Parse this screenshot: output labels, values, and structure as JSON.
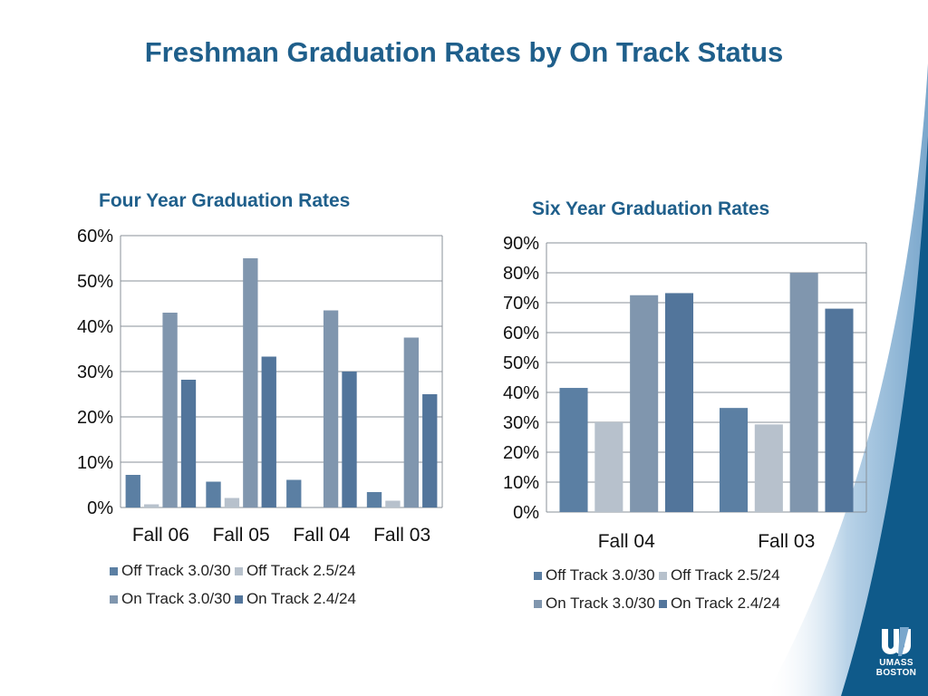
{
  "slide": {
    "title": "Freshman Graduation Rates by On Track Status"
  },
  "colors": {
    "title": "#1f5f8b",
    "off_track_30_30": "#5b7fa3",
    "off_track_25_24": "#b7c1cc",
    "on_track_30_30": "#8096ae",
    "on_track_24_24": "#52759b",
    "band_dark": "#0f5a8a",
    "band_light": "#8fb4d4"
  },
  "chart_data": [
    {
      "type": "bar",
      "title": "Four Year Graduation Rates",
      "categories": [
        "Fall 06",
        "Fall 05",
        "Fall 04",
        "Fall 03"
      ],
      "series": [
        {
          "name": "Off Track 3.0/30",
          "values": [
            7.2,
            5.7,
            6.1,
            3.4
          ]
        },
        {
          "name": "Off Track 2.5/24",
          "values": [
            0.7,
            2.1,
            null,
            1.5
          ]
        },
        {
          "name": "On Track 3.0/30",
          "values": [
            43,
            55,
            43.5,
            37.5
          ]
        },
        {
          "name": "On Track 2.4/24",
          "values": [
            28.2,
            33.3,
            30,
            25
          ]
        }
      ],
      "yticks": [
        "0%",
        "10%",
        "20%",
        "30%",
        "40%",
        "50%",
        "60%"
      ],
      "ylim": [
        0,
        60
      ],
      "grid": true,
      "legend": "bottom"
    },
    {
      "type": "bar",
      "title": "Six Year Graduation Rates",
      "categories": [
        "Fall 04",
        "Fall 03"
      ],
      "series": [
        {
          "name": "Off Track 3.0/30",
          "values": [
            41.5,
            34.8
          ]
        },
        {
          "name": "Off Track 2.5/24",
          "values": [
            30,
            29.3
          ]
        },
        {
          "name": "On Track 3.0/30",
          "values": [
            72.5,
            80
          ]
        },
        {
          "name": "On Track 2.4/24",
          "values": [
            73.2,
            68
          ]
        }
      ],
      "yticks": [
        "0%",
        "10%",
        "20%",
        "30%",
        "40%",
        "50%",
        "60%",
        "70%",
        "80%",
        "90%"
      ],
      "ylim": [
        0,
        90
      ],
      "grid": true,
      "legend": "bottom"
    }
  ],
  "logo": {
    "line1": "UMASS",
    "line2": "BOSTON"
  }
}
